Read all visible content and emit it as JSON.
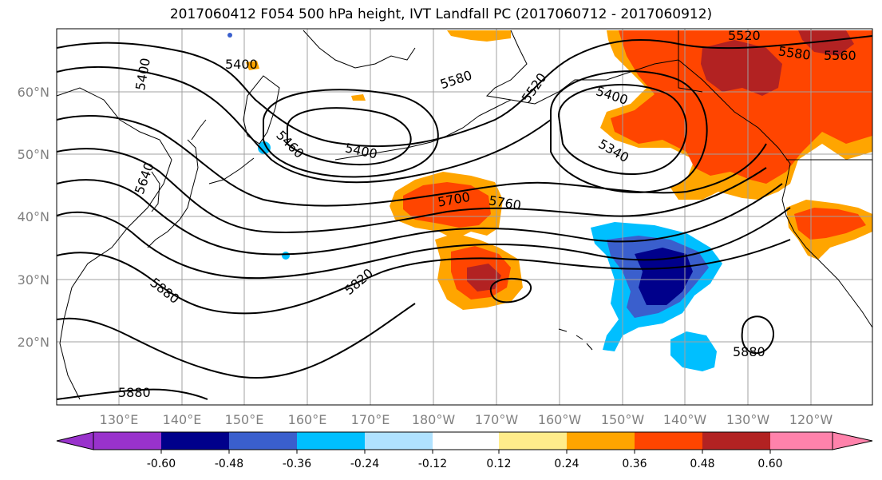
{
  "title": "2017060412 F054 500 hPa height, IVT Landfall PC (2017060712 - 2017060912)",
  "latitude_labels": [
    "60°N",
    "50°N",
    "40°N",
    "30°N",
    "20°N"
  ],
  "longitude_labels": [
    "130°E",
    "140°E",
    "150°E",
    "160°E",
    "170°E",
    "180°W",
    "170°W",
    "160°W",
    "150°W",
    "140°W",
    "130°W",
    "120°W"
  ],
  "contour_labels": [
    "5400",
    "5400",
    "5580",
    "5520",
    "5520",
    "5580",
    "5400",
    "5340",
    "5460",
    "5400",
    "5640",
    "5700",
    "5760",
    "5820",
    "5880",
    "5880",
    "5880",
    "5560"
  ],
  "colorbar": {
    "tick_labels": [
      "-0.60",
      "-0.48",
      "-0.36",
      "-0.24",
      "-0.12",
      "0.12",
      "0.24",
      "0.36",
      "0.48",
      "0.60"
    ],
    "colors": [
      "#9932cc",
      "#00008b",
      "#3a5fcd",
      "#00bfff",
      "#b0e2ff",
      "#ffffff",
      "#ffec8b",
      "#ffa500",
      "#ff4500",
      "#b22222",
      "#ff82ab"
    ]
  },
  "colors": {
    "ocean": "#ffffff",
    "coast": "#000000",
    "gridline": "#a0a0a0",
    "contour": "#000000"
  }
}
